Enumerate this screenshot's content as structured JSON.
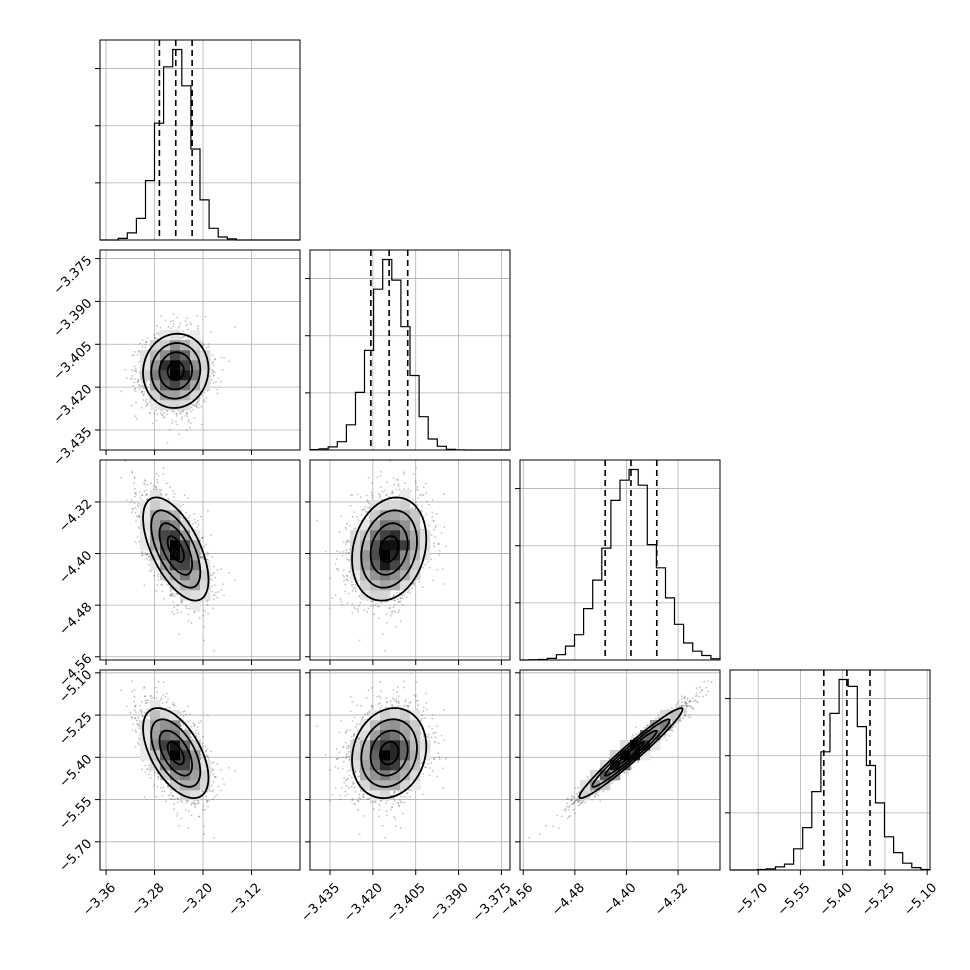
{
  "chart_data": {
    "type": "corner",
    "parameters": [
      {
        "range": [
          -3.37,
          -3.04
        ],
        "ticks": [
          -3.36,
          -3.28,
          -3.2,
          -3.12
        ],
        "tick_labels": [
          "−3.36",
          "−3.28",
          "−3.20",
          "−3.12"
        ],
        "mean": -3.245,
        "sd": 0.027,
        "quantiles": [
          -3.272,
          -3.245,
          -3.218
        ]
      },
      {
        "range": [
          -3.442,
          -3.372
        ],
        "ticks": [
          -3.435,
          -3.42,
          -3.405,
          -3.39,
          -3.375
        ],
        "tick_labels": [
          "−3.435",
          "−3.420",
          "−3.405",
          "−3.390",
          "−3.375"
        ],
        "mean": -3.4143,
        "sd": 0.0065,
        "quantiles": [
          -3.4207,
          -3.4143,
          -3.4078
        ]
      },
      {
        "range": [
          -4.565,
          -4.255
        ],
        "ticks": [
          -4.56,
          -4.48,
          -4.4,
          -4.32
        ],
        "tick_labels": [
          "−4.56",
          "−4.48",
          "−4.40",
          "−4.32"
        ],
        "mean": -4.393,
        "sd": 0.04,
        "quantiles": [
          -4.433,
          -4.393,
          -4.353
        ]
      },
      {
        "range": [
          -5.8,
          -5.09
        ],
        "ticks": [
          -5.7,
          -5.55,
          -5.4,
          -5.25,
          -5.1
        ],
        "tick_labels": [
          "−5.70",
          "−5.55",
          "−5.40",
          "−5.25",
          "−5.10"
        ],
        "mean": -5.385,
        "sd": 0.08,
        "quantiles": [
          -5.467,
          -5.385,
          -5.303
        ]
      }
    ],
    "correlations": [
      [
        1.0,
        0.05,
        -0.6,
        -0.55
      ],
      [
        0.05,
        1.0,
        0.2,
        0.15
      ],
      [
        -0.6,
        0.2,
        1.0,
        0.97
      ],
      [
        -0.55,
        0.15,
        0.97,
        1.0
      ]
    ],
    "contour_levels_sigma": [
      0.5,
      1.0,
      1.5,
      2.0
    ],
    "grid": true,
    "colors": {
      "line": "#000000",
      "points": "#555555",
      "grid": "#b0b0b0"
    }
  }
}
